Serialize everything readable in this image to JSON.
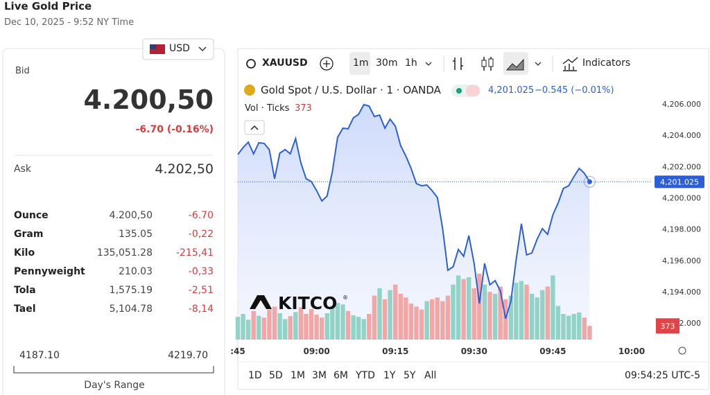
{
  "header": {
    "title": "Live Gold Price",
    "subtitle": "Dec 10, 2025 - 9:52 NY Time",
    "currency": "USD"
  },
  "quote": {
    "bid_label": "Bid",
    "bid": "4.200,50",
    "bid_change": "-6.70 (-0.16%)",
    "ask_label": "Ask",
    "ask": "4.202,50"
  },
  "units": {
    "rows": [
      [
        "Ounce",
        "4.200,50",
        "-6.70"
      ],
      [
        "Gram",
        "135.05",
        "-0,22"
      ],
      [
        "Kilo",
        "135,051.28",
        "-215,41"
      ],
      [
        "Pennyweight",
        "210.03",
        "-0,33"
      ],
      [
        "Tola",
        "1,575.19",
        "-2,51"
      ],
      [
        "Tael",
        "5,104.78",
        "-8,14"
      ]
    ]
  },
  "range": {
    "low": "4187.10",
    "high": "4219.70",
    "label": "Day's Range"
  },
  "toolbar": {
    "symbol": "XAUUSD",
    "intervals": [
      "1m",
      "30m",
      "1h"
    ],
    "indicators": "Indicators"
  },
  "footer": {
    "ranges": [
      "1D",
      "5D",
      "1M",
      "3M",
      "6M",
      "YTD",
      "1Y",
      "5Y",
      "All"
    ],
    "time": "09:54:25 UTC-5"
  },
  "chart_data": {
    "type": "line",
    "title": "Gold Spot / U.S. Dollar · 1 · OANDA",
    "change": "−0.545 (−0.01%)",
    "color": "#2b5fd9",
    "x": [
      0,
      1,
      2,
      3,
      4,
      5,
      6,
      7,
      8,
      9,
      10,
      11,
      12,
      13,
      14,
      15,
      16,
      17,
      18,
      19,
      20,
      21,
      22,
      23,
      24,
      25,
      26,
      27,
      28,
      29,
      30,
      31,
      32,
      33,
      34,
      35,
      36,
      37,
      38,
      39,
      40,
      41,
      42,
      43,
      44,
      45,
      46,
      47,
      48,
      49,
      50,
      51,
      52,
      53,
      54,
      55,
      56,
      57,
      58,
      59,
      60,
      61,
      62,
      63,
      64,
      65,
      66,
      67
    ],
    "values": [
      4202.77,
      4203.21,
      4203.56,
      4202.81,
      4203.52,
      4203.48,
      4203.08,
      4201.22,
      4202.86,
      4203.08,
      4202.81,
      4203.79,
      4202.24,
      4201.22,
      4201.04,
      4200.46,
      4199.8,
      4200.11,
      4201.66,
      4203.87,
      4204.45,
      4204.41,
      4205.11,
      4205.34,
      4205.96,
      4205.87,
      4205.2,
      4205.29,
      4204.45,
      4205.03,
      4204.58,
      4203.34,
      4202.68,
      4201.88,
      4200.91,
      4200.77,
      4200.82,
      4200.46,
      4200.02,
      4198.03,
      4195.37,
      4195.59,
      4196.7,
      4196.26,
      4197.59,
      4195.81,
      4193.25,
      4195.81,
      4194.44,
      4194.71,
      4194.04,
      4192.27,
      4193.38,
      4196.04,
      4198.34,
      4196.35,
      4196.48,
      4197.36,
      4198.03,
      4197.67,
      4198.92,
      4199.67,
      4200.6,
      4200.77,
      4201.35,
      4201.88,
      4201.57,
      4201.03
    ],
    "last_price": {
      "value": 4201.025,
      "label": "4,201.025"
    },
    "xlim": [
      0,
      78.83
    ],
    "xticks": [
      {
        "value": 0,
        "label": ":45"
      },
      {
        "value": 15,
        "label": "09:00"
      },
      {
        "value": 30,
        "label": "09:15"
      },
      {
        "value": 45,
        "label": "09:30"
      },
      {
        "value": 60,
        "label": "09:45"
      },
      {
        "value": 75,
        "label": "10:00"
      }
    ],
    "ylim": [
      4190.94,
      4207.33
    ],
    "yticks": [
      {
        "value": 4192,
        "label": "4,192.000"
      },
      {
        "value": 4194,
        "label": "4,194.000"
      },
      {
        "value": 4196,
        "label": "4,196.000"
      },
      {
        "value": 4198,
        "label": "4,198.000"
      },
      {
        "value": 4200,
        "label": "4,200.000"
      },
      {
        "value": 4202,
        "label": "4,202.000"
      },
      {
        "value": 4204,
        "label": "4,204.000"
      },
      {
        "value": 4206,
        "label": "4,206.000"
      }
    ],
    "grid": false,
    "volume": {
      "label": "Vol · Ticks",
      "ylim": [
        0,
        7000
      ],
      "up_color": "#92d3c7",
      "down_color": "#f3a6a6",
      "values": [
        620,
        700,
        540,
        780,
        650,
        600,
        820,
        900,
        720,
        560,
        640,
        750,
        880,
        700,
        830,
        680,
        600,
        720,
        920,
        1000,
        960,
        780,
        660,
        620,
        560,
        700,
        1200,
        1400,
        1100,
        1350,
        1500,
        1250,
        1150,
        980,
        900,
        820,
        1050,
        1100,
        1150,
        1050,
        1200,
        1500,
        1750,
        1650,
        1700,
        1400,
        1800,
        1500,
        1300,
        1250,
        1450,
        1100,
        1200,
        1550,
        1600,
        1500,
        1250,
        1150,
        1350,
        1450,
        1750,
        920,
        700,
        650,
        700,
        740,
        600,
        373
      ]
    },
    "logo": "KITCO",
    "logo_mark": "®"
  }
}
